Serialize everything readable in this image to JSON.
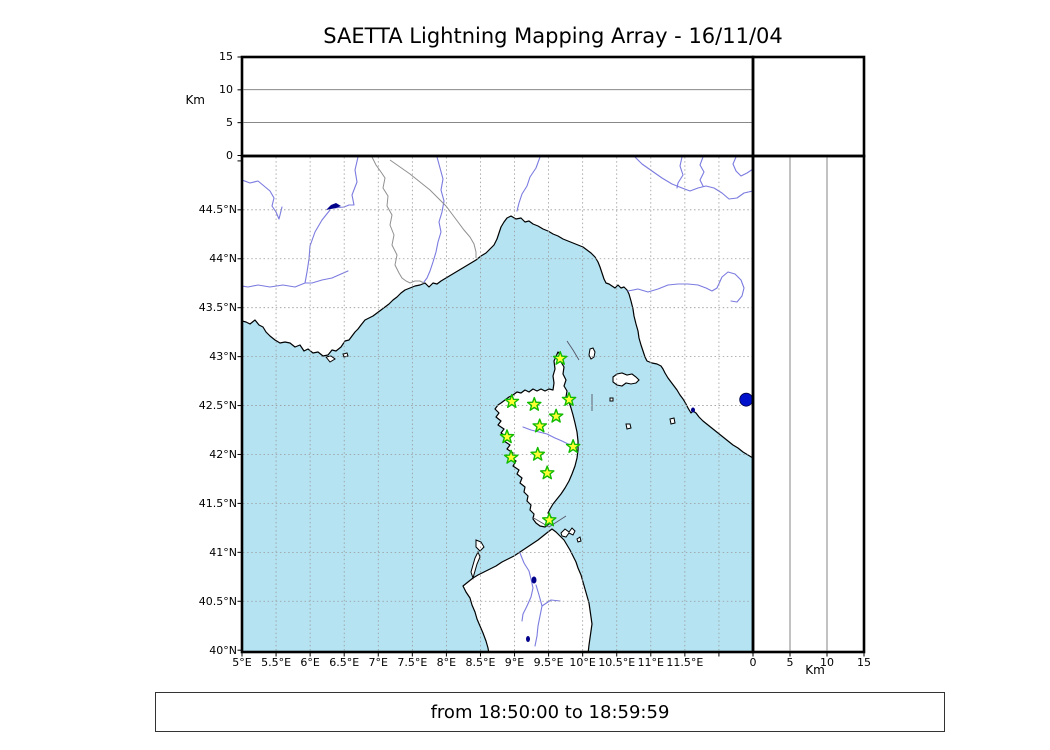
{
  "title": "SAETTA Lightning Mapping Array - 16/11/04",
  "footer": {
    "text": "from 18:50:00 to 18:59:59"
  },
  "altitude_axis": {
    "label": "Km",
    "tick_labels": [
      "0",
      "5",
      "10",
      "15"
    ],
    "tick_values": [
      0,
      5,
      10,
      15
    ],
    "range_km": [
      0,
      15
    ]
  },
  "map_axes": {
    "lon_tick_labels": [
      "5°E",
      "5.5°E",
      "6°E",
      "6.5°E",
      "7°E",
      "7.5°E",
      "8°E",
      "8.5°E",
      "9°E",
      "9.5°E",
      "10°E",
      "10.5°E",
      "11°E",
      "11.5°E"
    ],
    "lon_tick_values": [
      5,
      5.5,
      6,
      6.5,
      7,
      7.5,
      8,
      8.5,
      9,
      9.5,
      10,
      10.5,
      11,
      11.5
    ],
    "lat_tick_labels": [
      "44.5°N",
      "44°N",
      "43.5°N",
      "43°N",
      "42.5°N",
      "42°N",
      "41.5°N",
      "41°N",
      "40.5°N",
      "40°N"
    ],
    "lat_tick_values": [
      44.5,
      44,
      43.5,
      43,
      42.5,
      42,
      41.5,
      41,
      40.5,
      40
    ],
    "lon_range": [
      5,
      12.5
    ],
    "lat_range": [
      40,
      45.05
    ]
  },
  "stations": [
    {
      "lon": 9.67,
      "lat": 42.98
    },
    {
      "lon": 8.96,
      "lat": 42.54
    },
    {
      "lon": 9.29,
      "lat": 42.51
    },
    {
      "lon": 9.8,
      "lat": 42.56
    },
    {
      "lon": 9.61,
      "lat": 42.39
    },
    {
      "lon": 9.37,
      "lat": 42.29
    },
    {
      "lon": 8.89,
      "lat": 42.18
    },
    {
      "lon": 8.95,
      "lat": 41.97
    },
    {
      "lon": 9.34,
      "lat": 42.0
    },
    {
      "lon": 9.86,
      "lat": 42.08
    },
    {
      "lon": 9.48,
      "lat": 41.81
    },
    {
      "lon": 9.51,
      "lat": 41.33
    }
  ],
  "event_marker": {
    "lon": 12.4,
    "lat": 42.56,
    "color": "#0011cc"
  },
  "colors": {
    "sea": "#b5e3f2",
    "land": "#ffffff",
    "coast": "#000000",
    "river": "#7b7be0",
    "border": "#909090",
    "grid": "#999999",
    "station_fill": "#ffff33",
    "station_edge": "#11bb00",
    "lake": "#00008b"
  },
  "chart_data": {
    "type": "scatter",
    "title": "SAETTA Lightning Mapping Array - 16/11/04",
    "subtitle": "from 18:50:00 to 18:59:59",
    "panels": [
      {
        "name": "altitude-vs-longitude",
        "ylabel": "Km",
        "ylim": [
          0,
          15
        ],
        "yticks": [
          0,
          5,
          10,
          15
        ],
        "gridlines_km": [
          5,
          10
        ],
        "points": []
      },
      {
        "name": "map-lat-lon",
        "xlim": [
          5,
          12.5
        ],
        "ylim": [
          40,
          45.05
        ],
        "xticks_deg_e": [
          5,
          5.5,
          6,
          6.5,
          7,
          7.5,
          8,
          8.5,
          9,
          9.5,
          10,
          10.5,
          11,
          11.5
        ],
        "yticks_deg_n": [
          40,
          40.5,
          41,
          41.5,
          42,
          42.5,
          43,
          43.5,
          44,
          44.5
        ],
        "grid": "dashed",
        "station_markers": "green-yellow stars on Corsica (12)",
        "event_points": [
          {
            "lon": 12.4,
            "lat": 42.56
          }
        ]
      },
      {
        "name": "altitude-vs-latitude",
        "xlabel": "Km",
        "xlim": [
          0,
          15
        ],
        "xticks": [
          0,
          5,
          10,
          15
        ],
        "gridlines_km": [
          5,
          10
        ],
        "points": []
      }
    ],
    "legend": "none"
  }
}
